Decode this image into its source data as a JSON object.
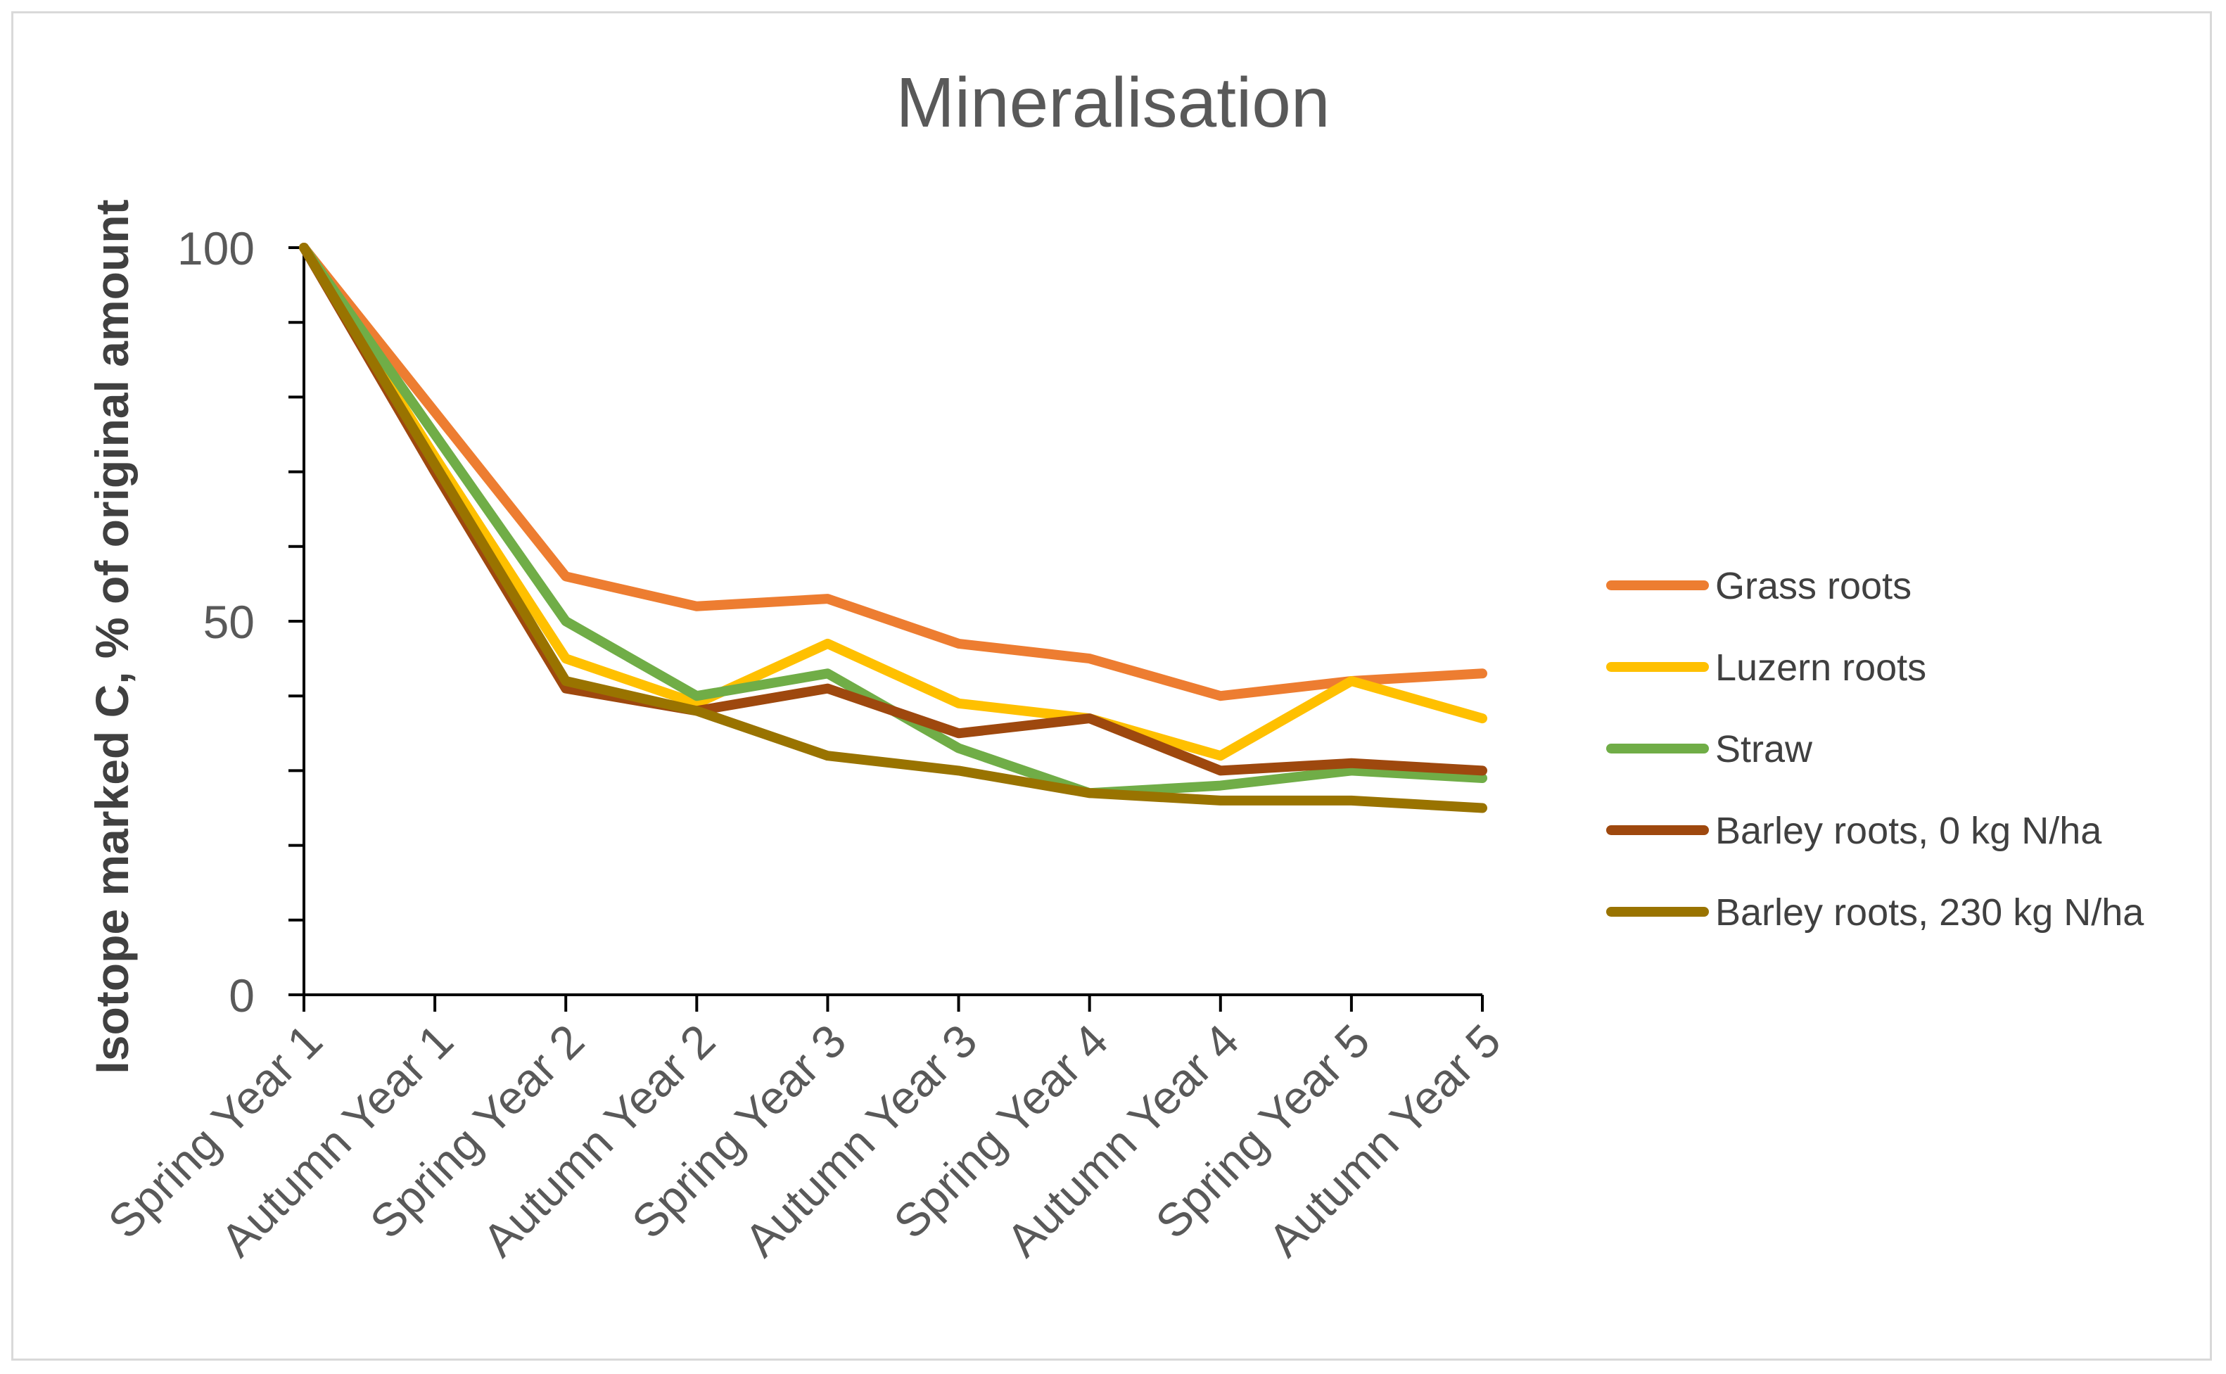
{
  "chart_data": {
    "type": "line",
    "title": "Mineralisation",
    "xlabel": "",
    "ylabel": "Isotope marked C, % of original amount",
    "ylim": [
      0,
      100
    ],
    "yticks": [
      "0",
      "50",
      "100"
    ],
    "grid": false,
    "legend_position": "right",
    "categories": [
      "Spring Year 1",
      "Autumn Year 1",
      "Spring Year 2",
      "Autumn Year 2",
      "Spring Year 3",
      "Autumn Year 3",
      "Spring Year 4",
      "Autumn Year 4",
      "Spring Year 5",
      "Autumn Year 5"
    ],
    "series": [
      {
        "name": "Grass roots",
        "color": "#ed7d31",
        "values": [
          100,
          78,
          56,
          52,
          53,
          47,
          45,
          40,
          42,
          43
        ]
      },
      {
        "name": "Luzern roots",
        "color": "#ffc000",
        "values": [
          100,
          72,
          45,
          39,
          47,
          39,
          37,
          32,
          42,
          37
        ]
      },
      {
        "name": "Straw",
        "color": "#70ad47",
        "values": [
          100,
          75,
          50,
          40,
          43,
          33,
          27,
          28,
          30,
          29
        ]
      },
      {
        "name": "Barley roots, 0 kg N/ha",
        "color": "#9e480e",
        "values": [
          100,
          70,
          41,
          38,
          41,
          35,
          37,
          30,
          31,
          30
        ]
      },
      {
        "name": "Barley roots, 230 kg N/ha",
        "color": "#997300",
        "values": [
          100,
          71,
          42,
          38,
          32,
          30,
          27,
          26,
          26,
          25
        ]
      }
    ]
  }
}
